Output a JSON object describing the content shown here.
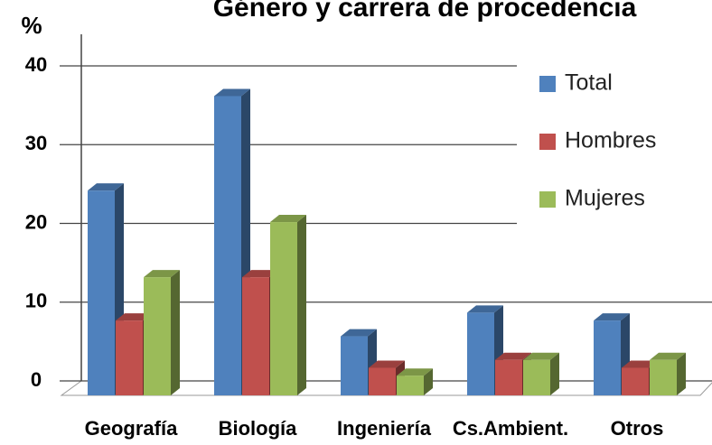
{
  "chart_data": {
    "type": "bar3d",
    "title": "Género y carrera de procedencia",
    "y_label": "%",
    "categories": [
      "Geografía",
      "Biología",
      "Ingeniería",
      "Cs.Ambient.",
      "Otros"
    ],
    "series": [
      {
        "name": "Total",
        "color": "#4f81bd",
        "values": [
          26,
          38,
          7.5,
          10.5,
          9.5
        ]
      },
      {
        "name": "Hombres",
        "color": "#c0504d",
        "values": [
          9.5,
          15,
          3.5,
          4.5,
          3.5
        ]
      },
      {
        "name": "Mujeres",
        "color": "#9bbb59",
        "values": [
          15,
          22,
          2.5,
          4.5,
          4.5
        ]
      }
    ],
    "ylim": [
      0,
      40
    ],
    "yticks": [
      0,
      10,
      20,
      30,
      40
    ],
    "grid": true,
    "legend": "right"
  }
}
